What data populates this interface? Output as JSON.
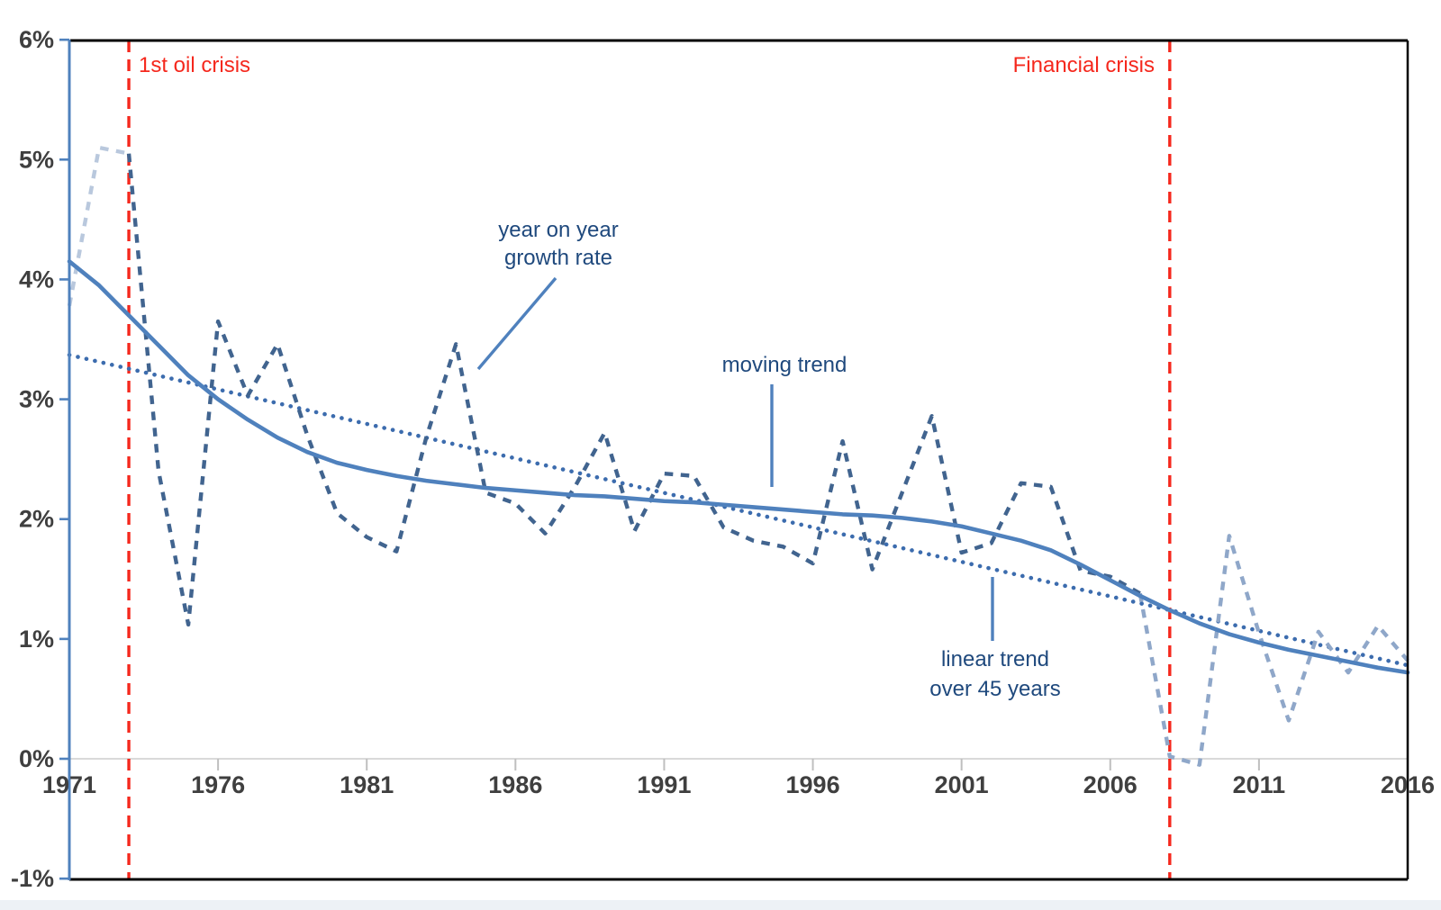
{
  "chart_data": {
    "type": "line",
    "title": "",
    "x_axis": {
      "min": 1971,
      "max": 2016,
      "tick_years": [
        1971,
        1976,
        1981,
        1986,
        1991,
        1996,
        2001,
        2006,
        2011,
        2016
      ]
    },
    "y_axis": {
      "min": -1,
      "max": 6,
      "tick_values": [
        6,
        5,
        4,
        3,
        2,
        1,
        0,
        -1
      ],
      "tick_labels": [
        "6%",
        "5%",
        "4%",
        "3%",
        "2%",
        "1%",
        "0%",
        "-1%"
      ]
    },
    "years": [
      1971,
      1972,
      1973,
      1974,
      1975,
      1976,
      1977,
      1978,
      1979,
      1980,
      1981,
      1982,
      1983,
      1984,
      1985,
      1986,
      1987,
      1988,
      1989,
      1990,
      1991,
      1992,
      1993,
      1994,
      1995,
      1996,
      1997,
      1998,
      1999,
      2000,
      2001,
      2002,
      2003,
      2004,
      2005,
      2006,
      2007,
      2008,
      2009,
      2010,
      2011,
      2012,
      2013,
      2014,
      2015,
      2016
    ],
    "series": [
      {
        "name": "year on year growth rate",
        "label_lines": [
          "year on year",
          "growth rate"
        ],
        "style": "dashed",
        "colors": {
          "faded_early": "#b9c8dd",
          "main": "#41648f",
          "faded_late": "#8fa7c9"
        },
        "fade_before_year": 1973,
        "fade_after_year": 2007,
        "values": [
          3.78,
          5.1,
          5.05,
          2.4,
          1.12,
          3.65,
          3.03,
          3.46,
          2.7,
          2.05,
          1.85,
          1.73,
          2.68,
          3.46,
          2.22,
          2.13,
          1.88,
          2.27,
          2.72,
          1.9,
          2.38,
          2.36,
          1.93,
          1.82,
          1.77,
          1.63,
          2.65,
          1.58,
          2.22,
          2.86,
          1.72,
          1.8,
          2.3,
          2.27,
          1.57,
          1.52,
          1.38,
          0.02,
          -0.05,
          1.86,
          1.05,
          0.32,
          1.06,
          0.72,
          1.11,
          0.82
        ]
      },
      {
        "name": "moving trend",
        "style": "solid",
        "color": "#4f81bd",
        "values": [
          4.15,
          3.95,
          3.7,
          3.45,
          3.2,
          3.0,
          2.83,
          2.68,
          2.56,
          2.47,
          2.41,
          2.36,
          2.32,
          2.29,
          2.26,
          2.24,
          2.22,
          2.2,
          2.19,
          2.17,
          2.15,
          2.14,
          2.12,
          2.1,
          2.08,
          2.06,
          2.04,
          2.03,
          2.01,
          1.98,
          1.94,
          1.88,
          1.82,
          1.74,
          1.62,
          1.49,
          1.36,
          1.24,
          1.13,
          1.04,
          0.97,
          0.91,
          0.86,
          0.81,
          0.76,
          0.72
        ]
      },
      {
        "name": "linear trend over 45 years",
        "label_lines": [
          "linear trend",
          "over 45 years"
        ],
        "style": "dotted",
        "color": "#3c6cae",
        "x": [
          1971,
          2016
        ],
        "values": [
          3.37,
          0.78
        ]
      }
    ],
    "event_lines": [
      {
        "label": "1st oil crisis",
        "year": 1973,
        "color": "#f5281d"
      },
      {
        "label": "Financial crisis",
        "year": 2008,
        "color": "#f5281d"
      }
    ],
    "grid": {
      "zero_line_color": "#d9d9d9",
      "x_tick_color": "#bfbfbf",
      "axis_color": "#4f81bd",
      "border_color": "#000000",
      "tick_label_color": "#3f3f3f",
      "annotation_color": "#1f497d"
    }
  }
}
